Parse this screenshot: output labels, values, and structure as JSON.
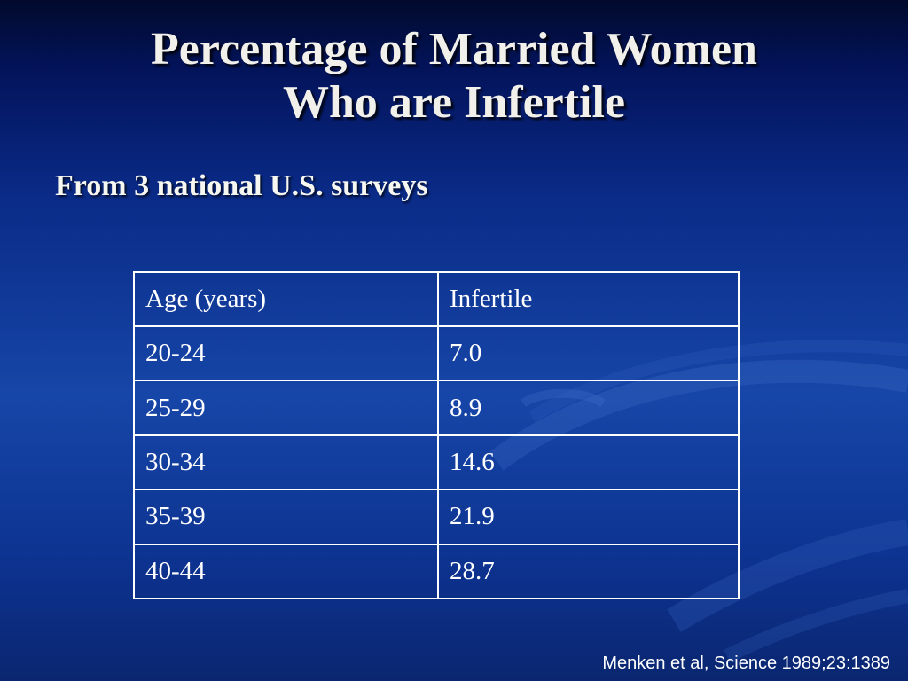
{
  "slide": {
    "title_line1": "Percentage of Married Women",
    "title_line2": "Who are Infertile",
    "subtitle": "From 3 national U.S. surveys",
    "citation": "Menken et al, Science 1989;23:1389"
  },
  "table": {
    "headers": [
      "Age (years)",
      "Infertile"
    ],
    "rows": [
      [
        "20-24",
        "7.0"
      ],
      [
        "25-29",
        "8.9"
      ],
      [
        "30-34",
        "14.6"
      ],
      [
        "35-39",
        "21.9"
      ],
      [
        "40-44",
        "28.7"
      ]
    ]
  },
  "colors": {
    "background_dark": "#03135a",
    "background_mid": "#1646a8",
    "text": "#ffffff",
    "table_border": "#ffffff"
  }
}
